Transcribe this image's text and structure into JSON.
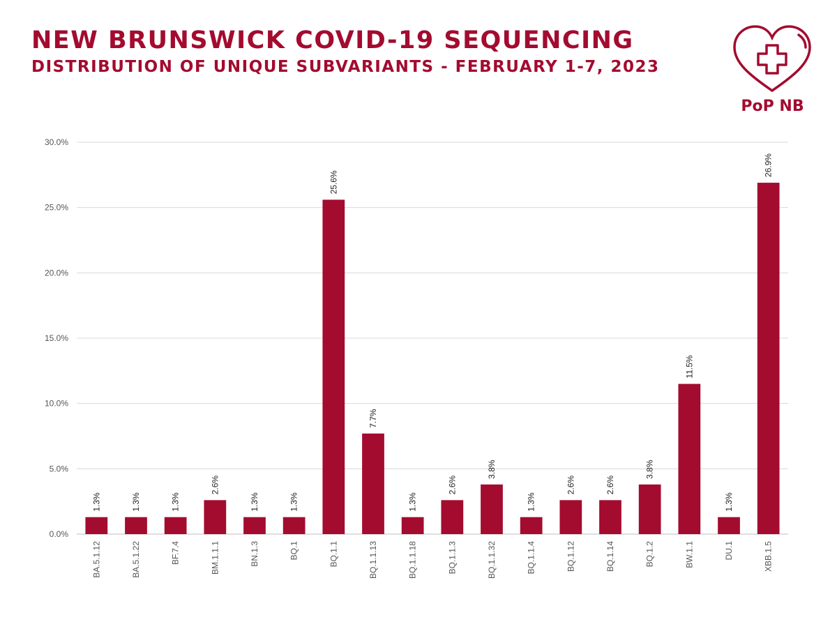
{
  "header": {
    "title": "NEW BRUNSWICK COVID-19 SEQUENCING",
    "subtitle": "DISTRIBUTION OF UNIQUE SUBVARIANTS - FEBRUARY 1-7, 2023"
  },
  "logo": {
    "text": "PoP NB",
    "icon": "heart-with-cross-icon",
    "color": "#a30b2f"
  },
  "colors": {
    "bar": "#a30b2f",
    "grid": "#d9d9d9"
  },
  "chart_data": {
    "type": "bar",
    "categories": [
      "BA.5.1.12",
      "BA.5.1.22",
      "BF.7.4",
      "BM.1.1.1",
      "BN.1.3",
      "BQ.1",
      "BQ.1.1",
      "BQ.1.1.13",
      "BQ.1.1.18",
      "BQ.1.1.3",
      "BQ.1.1.32",
      "BQ.1.1.4",
      "BQ.1.12",
      "BQ.1.14",
      "BQ.1.2",
      "BW.1.1",
      "DU.1",
      "XBB.1.5"
    ],
    "values": [
      1.3,
      1.3,
      1.3,
      2.6,
      1.3,
      1.3,
      25.6,
      7.7,
      1.3,
      2.6,
      3.8,
      1.3,
      2.6,
      2.6,
      3.8,
      11.5,
      1.3,
      26.9
    ],
    "data_labels": [
      "1.3%",
      "1.3%",
      "1.3%",
      "2.6%",
      "1.3%",
      "1.3%",
      "25.6%",
      "7.7%",
      "1.3%",
      "2.6%",
      "3.8%",
      "1.3%",
      "2.6%",
      "2.6%",
      "3.8%",
      "11.5%",
      "1.3%",
      "26.9%"
    ],
    "yticks": [
      "0.0%",
      "5.0%",
      "10.0%",
      "15.0%",
      "20.0%",
      "25.0%",
      "30.0%"
    ],
    "ylim": [
      0,
      30
    ],
    "grid": true,
    "legend": "none"
  }
}
